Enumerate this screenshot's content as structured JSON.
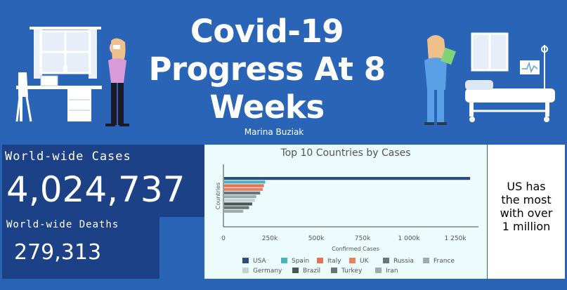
{
  "header": {
    "title_lines": [
      "Covid-19",
      "Progress At 8",
      "Weeks"
    ],
    "author": "Marina Buziak"
  },
  "stats": {
    "cases_label": "World-wide Cases",
    "cases_value": "4,024,737",
    "deaths_label": "World-wide Deaths",
    "deaths_value": "279,313"
  },
  "note": {
    "lines": [
      "US has",
      "the most",
      "with over",
      "1 million"
    ]
  },
  "colors": {
    "header_bg": "#2a64b7",
    "panel_bg": "#1d4187",
    "chart_bg": "#ecfbfb"
  },
  "chart_data": {
    "type": "bar",
    "orientation": "horizontal",
    "title": "Top 10 Countries by Cases",
    "xlabel": "Confirmed Cases",
    "ylabel": "Countries",
    "xlim": [
      0,
      1375000
    ],
    "xticks": [
      "0",
      "250k",
      "500k",
      "750k",
      "1 000k",
      "1 250k"
    ],
    "xtick_values": [
      0,
      250000,
      500000,
      750000,
      1000000,
      1250000
    ],
    "categories": [
      "USA",
      "Spain",
      "Italy",
      "UK",
      "Russia",
      "France",
      "Germany",
      "Brazil",
      "Turkey",
      "Iran"
    ],
    "values": [
      1330000,
      225000,
      218000,
      212000,
      198000,
      177000,
      170000,
      155000,
      138000,
      107000
    ],
    "colors": [
      "#2d4c7f",
      "#4ab3bd",
      "#e97151",
      "#e9805e",
      "#67757c",
      "#9dabb1",
      "#c2d3d2",
      "#4b5553",
      "#6b7472",
      "#a5a9a8"
    ],
    "legend_position": "bottom",
    "grid": false
  }
}
